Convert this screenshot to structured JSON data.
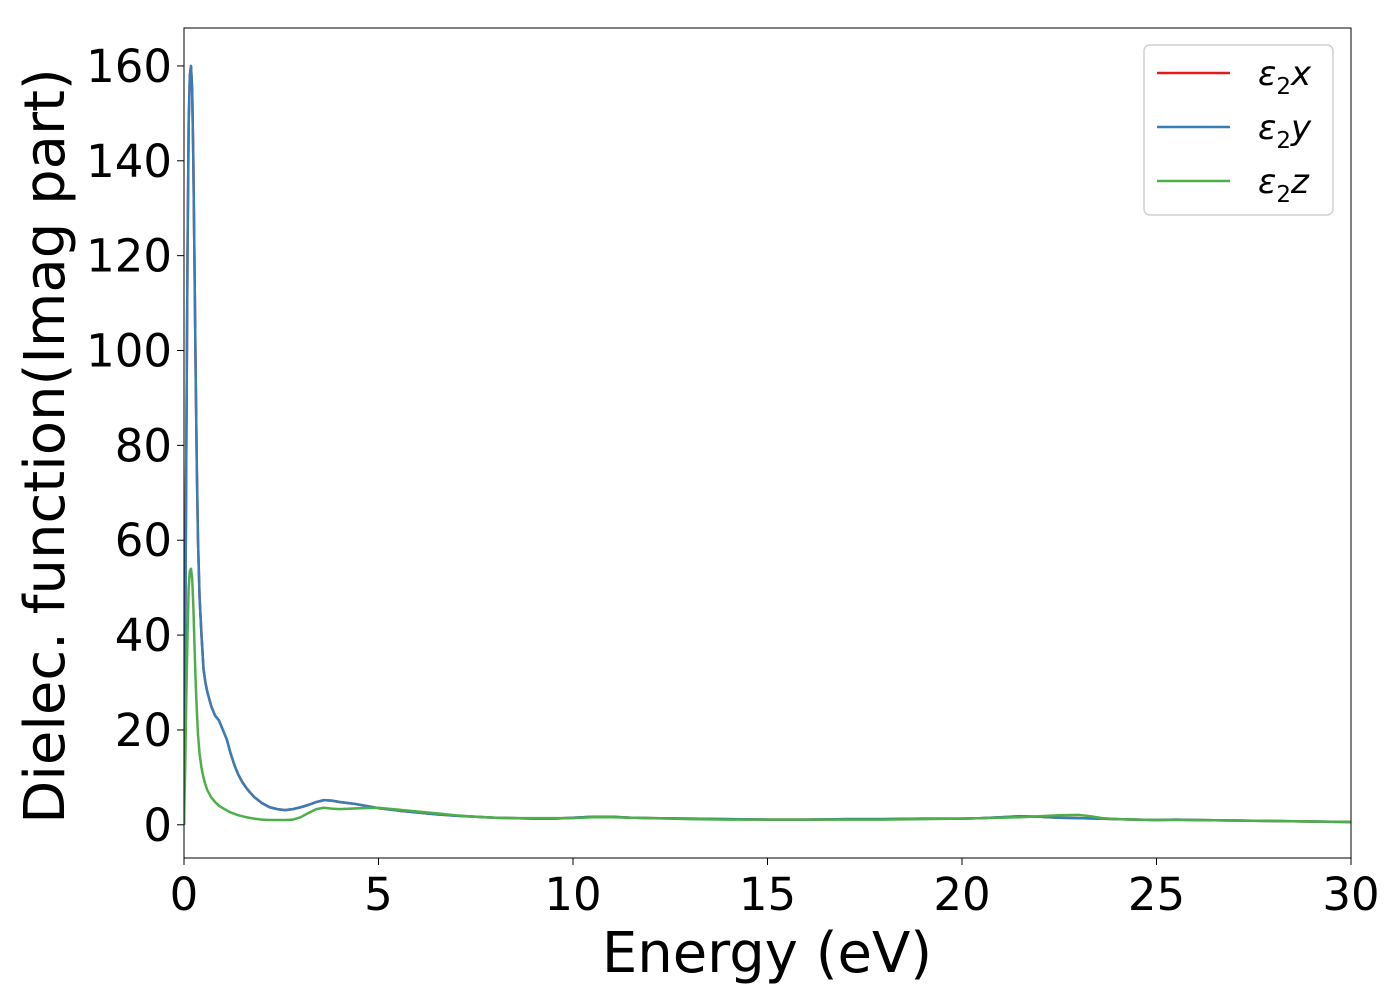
{
  "chart_data": {
    "type": "line",
    "title": "",
    "xlabel": "Energy (eV)",
    "ylabel": "Dielec. function(Imag part)",
    "xlim": [
      0,
      30
    ],
    "ylim": [
      -7,
      168
    ],
    "xticks": [
      0,
      5,
      10,
      15,
      20,
      25,
      30
    ],
    "yticks": [
      0,
      20,
      40,
      60,
      80,
      100,
      120,
      140,
      160
    ],
    "grid": false,
    "legend_position": "top-right",
    "series": [
      {
        "name": "ε₂x",
        "legend_base": "ε",
        "legend_sub": "2",
        "legend_suffix": "x",
        "color": "#e41a1c",
        "x": [
          0,
          0.03,
          0.06,
          0.09,
          0.12,
          0.15,
          0.18,
          0.21,
          0.24,
          0.27,
          0.3,
          0.33,
          0.36,
          0.4,
          0.45,
          0.5,
          0.55,
          0.6,
          0.7,
          0.8,
          0.9,
          1.0,
          1.1,
          1.2,
          1.3,
          1.4,
          1.5,
          1.6,
          1.7,
          1.8,
          2.0,
          2.2,
          2.4,
          2.6,
          2.8,
          3.0,
          3.2,
          3.4,
          3.6,
          3.8,
          4.0,
          4.2,
          4.4,
          4.6,
          4.8,
          5.0,
          5.5,
          6.0,
          6.5,
          7.0,
          7.5,
          8.0,
          8.5,
          9.0,
          9.5,
          10.0,
          10.5,
          11.0,
          11.5,
          12.0,
          13.0,
          14.0,
          15.0,
          16.0,
          17.0,
          18.0,
          19.0,
          20.0,
          20.5,
          21.0,
          21.5,
          22.0,
          22.5,
          23.0,
          23.5,
          24.0,
          24.5,
          25.0,
          25.5,
          26.0,
          27.0,
          28.0,
          29.0,
          30.0
        ],
        "values": [
          0,
          35,
          80,
          120,
          148,
          158,
          160,
          155,
          140,
          118,
          95,
          75,
          60,
          48,
          40,
          33,
          30,
          28,
          25,
          23,
          22,
          20,
          18,
          15,
          12.5,
          10.5,
          9,
          7.8,
          6.8,
          5.9,
          4.6,
          3.7,
          3.3,
          3.1,
          3.3,
          3.7,
          4.2,
          4.8,
          5.2,
          5.1,
          4.8,
          4.6,
          4.4,
          4.1,
          3.8,
          3.5,
          3.0,
          2.6,
          2.2,
          1.9,
          1.7,
          1.5,
          1.4,
          1.3,
          1.3,
          1.5,
          1.7,
          1.7,
          1.5,
          1.4,
          1.3,
          1.2,
          1.1,
          1.1,
          1.2,
          1.2,
          1.3,
          1.3,
          1.4,
          1.6,
          1.8,
          1.7,
          1.5,
          1.4,
          1.3,
          1.2,
          1.1,
          1.0,
          1.1,
          1.0,
          0.9,
          0.8,
          0.7,
          0.6
        ]
      },
      {
        "name": "ε₂y",
        "legend_base": "ε",
        "legend_sub": "2",
        "legend_suffix": "y",
        "color": "#377eb8",
        "x": [
          0,
          0.03,
          0.06,
          0.09,
          0.12,
          0.15,
          0.18,
          0.21,
          0.24,
          0.27,
          0.3,
          0.33,
          0.36,
          0.4,
          0.45,
          0.5,
          0.55,
          0.6,
          0.7,
          0.8,
          0.9,
          1.0,
          1.1,
          1.2,
          1.3,
          1.4,
          1.5,
          1.6,
          1.7,
          1.8,
          2.0,
          2.2,
          2.4,
          2.6,
          2.8,
          3.0,
          3.2,
          3.4,
          3.6,
          3.8,
          4.0,
          4.2,
          4.4,
          4.6,
          4.8,
          5.0,
          5.5,
          6.0,
          6.5,
          7.0,
          7.5,
          8.0,
          8.5,
          9.0,
          9.5,
          10.0,
          10.5,
          11.0,
          11.5,
          12.0,
          13.0,
          14.0,
          15.0,
          16.0,
          17.0,
          18.0,
          19.0,
          20.0,
          20.5,
          21.0,
          21.5,
          22.0,
          22.5,
          23.0,
          23.5,
          24.0,
          24.5,
          25.0,
          25.5,
          26.0,
          27.0,
          28.0,
          29.0,
          30.0
        ],
        "values": [
          0,
          35,
          80,
          120,
          148,
          158,
          160,
          155,
          140,
          118,
          95,
          75,
          60,
          48,
          40,
          33,
          30,
          28,
          25,
          23,
          22,
          20,
          18,
          15,
          12.5,
          10.5,
          9,
          7.8,
          6.8,
          5.9,
          4.6,
          3.7,
          3.3,
          3.1,
          3.3,
          3.7,
          4.2,
          4.8,
          5.2,
          5.1,
          4.8,
          4.6,
          4.4,
          4.1,
          3.8,
          3.5,
          3.0,
          2.6,
          2.2,
          1.9,
          1.7,
          1.5,
          1.4,
          1.3,
          1.3,
          1.5,
          1.7,
          1.7,
          1.5,
          1.4,
          1.3,
          1.2,
          1.1,
          1.1,
          1.2,
          1.2,
          1.3,
          1.3,
          1.4,
          1.6,
          1.8,
          1.7,
          1.5,
          1.4,
          1.3,
          1.2,
          1.1,
          1.0,
          1.1,
          1.0,
          0.9,
          0.8,
          0.7,
          0.6
        ]
      },
      {
        "name": "ε₂z",
        "legend_base": "ε",
        "legend_sub": "2",
        "legend_suffix": "z",
        "color": "#4daf4a",
        "x": [
          0,
          0.03,
          0.06,
          0.09,
          0.12,
          0.15,
          0.18,
          0.21,
          0.24,
          0.27,
          0.3,
          0.33,
          0.36,
          0.4,
          0.45,
          0.5,
          0.55,
          0.6,
          0.7,
          0.8,
          0.9,
          1.0,
          1.2,
          1.4,
          1.6,
          1.8,
          2.0,
          2.2,
          2.4,
          2.6,
          2.8,
          3.0,
          3.2,
          3.4,
          3.6,
          3.8,
          4.0,
          4.5,
          5.0,
          5.5,
          6.0,
          6.5,
          7.0,
          7.5,
          8.0,
          8.5,
          9.0,
          9.5,
          10.0,
          10.5,
          11.0,
          11.5,
          12.0,
          13.0,
          14.0,
          15.0,
          16.0,
          17.0,
          18.0,
          19.0,
          20.0,
          20.5,
          21.0,
          21.5,
          22.0,
          22.5,
          23.0,
          23.3,
          23.6,
          24.0,
          24.5,
          25.0,
          25.5,
          26.0,
          27.0,
          28.0,
          29.0,
          30.0
        ],
        "values": [
          0,
          12,
          27,
          40,
          50,
          53.5,
          54,
          52,
          46,
          38,
          30,
          24,
          19,
          15,
          12,
          10,
          8.5,
          7.3,
          5.8,
          4.8,
          4.0,
          3.5,
          2.6,
          2.0,
          1.6,
          1.3,
          1.1,
          1.0,
          1.0,
          1.0,
          1.1,
          1.6,
          2.5,
          3.3,
          3.6,
          3.4,
          3.3,
          3.5,
          3.6,
          3.2,
          2.8,
          2.4,
          2.0,
          1.7,
          1.5,
          1.4,
          1.4,
          1.4,
          1.4,
          1.6,
          1.6,
          1.5,
          1.4,
          1.2,
          1.1,
          1.1,
          1.1,
          1.1,
          1.1,
          1.2,
          1.3,
          1.4,
          1.5,
          1.6,
          1.8,
          2.0,
          2.1,
          1.8,
          1.4,
          1.2,
          1.1,
          1.0,
          1.0,
          1.0,
          0.9,
          0.8,
          0.7,
          0.6
        ]
      }
    ]
  }
}
